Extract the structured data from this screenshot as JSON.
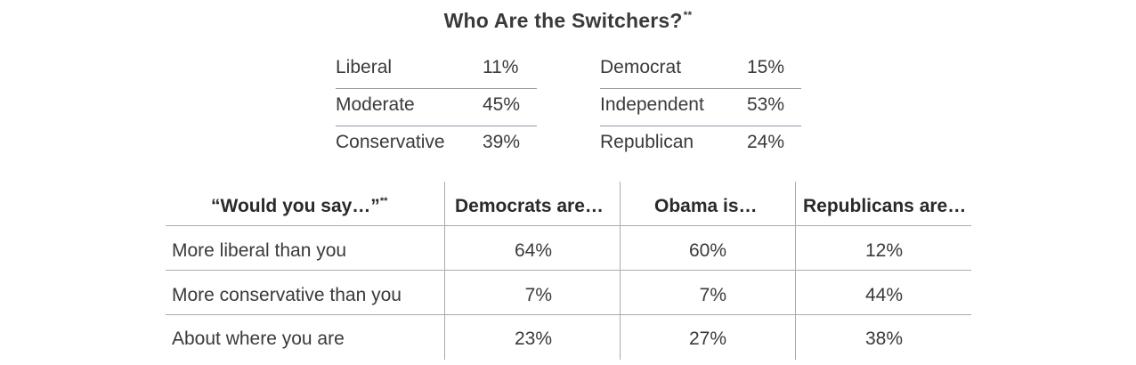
{
  "title": "Who Are the Switchers?",
  "title_marker": "**",
  "ideology": [
    {
      "label": "Liberal",
      "value": "11%"
    },
    {
      "label": "Moderate",
      "value": "45%"
    },
    {
      "label": "Conservative",
      "value": "39%"
    }
  ],
  "party": [
    {
      "label": "Democrat",
      "value": "15%"
    },
    {
      "label": "Independent",
      "value": "53%"
    },
    {
      "label": "Republican",
      "value": "24%"
    }
  ],
  "table": {
    "question": "“Would you say…”",
    "question_marker": "**",
    "columns": [
      "Democrats are…",
      "Obama is…",
      "Republicans are…"
    ],
    "rows": [
      {
        "label": "More liberal than you",
        "values": [
          "64%",
          "60%",
          "12%"
        ]
      },
      {
        "label": "More conservative than you",
        "values": [
          "7%",
          "7%",
          "44%"
        ]
      },
      {
        "label": "About where you are",
        "values": [
          "23%",
          "27%",
          "38%"
        ]
      }
    ]
  }
}
